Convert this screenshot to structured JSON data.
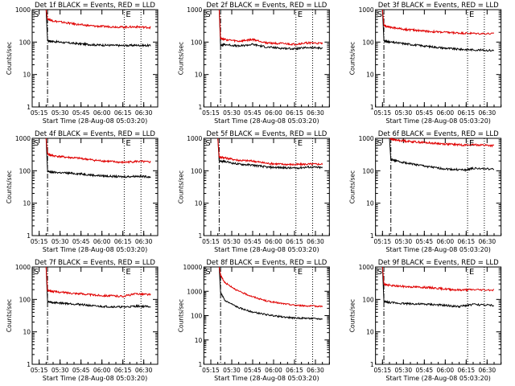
{
  "page": {
    "rows": 3,
    "cols": 3
  },
  "common": {
    "ylabel": "Counts/sec",
    "xlabel": "Start Time (28-Aug-08 05:03:20)",
    "start_marker": "S",
    "end_marker": "E",
    "x_ticks": [
      "05:15",
      "05:30",
      "05:45",
      "06:00",
      "06:15",
      "06:30"
    ],
    "y_ticks": [
      "1",
      "10",
      "100",
      "1000"
    ],
    "colors": {
      "events": "#000000",
      "lld": "#e00000"
    }
  },
  "chart_data": [
    {
      "type": "line",
      "title": "Det 1f BLACK = Events, RED = LLD",
      "ylim": [
        1,
        1000
      ],
      "start_line": "05:21",
      "end_lines": [
        "06:16",
        "06:28"
      ],
      "series": [
        {
          "name": "Events",
          "x": [
            "05:21",
            "05:25",
            "05:35",
            "05:45",
            "05:55",
            "06:05",
            "06:15",
            "06:25",
            "06:35"
          ],
          "y": [
            110,
            105,
            95,
            88,
            82,
            80,
            78,
            80,
            78
          ]
        },
        {
          "name": "LLD",
          "x": [
            "05:21",
            "05:25",
            "05:35",
            "05:45",
            "05:55",
            "06:05",
            "06:15",
            "06:25",
            "06:35"
          ],
          "y": [
            520,
            450,
            390,
            340,
            310,
            300,
            290,
            295,
            280
          ]
        }
      ]
    },
    {
      "type": "line",
      "title": "Det 2f BLACK = Events, RED = LLD",
      "ylim": [
        1,
        1000
      ],
      "start_line": "05:22",
      "end_lines": [
        "06:16",
        "06:28"
      ],
      "series": [
        {
          "name": "Events",
          "x": [
            "05:22",
            "05:25",
            "05:35",
            "05:45",
            "05:55",
            "06:05",
            "06:15",
            "06:25",
            "06:35"
          ],
          "y": [
            80,
            85,
            75,
            85,
            70,
            65,
            62,
            68,
            65
          ]
        },
        {
          "name": "LLD",
          "x": [
            "05:22",
            "05:25",
            "05:35",
            "05:45",
            "05:55",
            "06:05",
            "06:15",
            "06:25",
            "06:35"
          ],
          "y": [
            130,
            120,
            105,
            120,
            95,
            90,
            85,
            95,
            90
          ]
        }
      ]
    },
    {
      "type": "line",
      "title": "Det 3f BLACK = Events, RED = LLD",
      "ylim": [
        1,
        1000
      ],
      "start_line": "05:16",
      "end_lines": [
        "06:16",
        "06:28"
      ],
      "series": [
        {
          "name": "Events",
          "x": [
            "05:16",
            "05:20",
            "05:30",
            "05:40",
            "05:50",
            "06:00",
            "06:10",
            "06:20",
            "06:35"
          ],
          "y": [
            110,
            100,
            90,
            80,
            72,
            65,
            60,
            58,
            55
          ]
        },
        {
          "name": "LLD",
          "x": [
            "05:16",
            "05:20",
            "05:30",
            "05:40",
            "05:50",
            "06:00",
            "06:10",
            "06:20",
            "06:35"
          ],
          "y": [
            330,
            290,
            250,
            230,
            210,
            200,
            190,
            185,
            180
          ]
        }
      ]
    },
    {
      "type": "line",
      "title": "Det 4f BLACK = Events, RED = LLD",
      "ylim": [
        1,
        1000
      ],
      "start_line": "05:21",
      "end_lines": [
        "06:16",
        "06:28"
      ],
      "series": [
        {
          "name": "Events",
          "x": [
            "05:21",
            "05:25",
            "05:35",
            "05:45",
            "05:55",
            "06:05",
            "06:15",
            "06:25",
            "06:35"
          ],
          "y": [
            95,
            90,
            85,
            80,
            72,
            68,
            65,
            68,
            65
          ]
        },
        {
          "name": "LLD",
          "x": [
            "05:21",
            "05:25",
            "05:35",
            "05:45",
            "05:55",
            "06:05",
            "06:15",
            "06:25",
            "06:35"
          ],
          "y": [
            330,
            290,
            260,
            240,
            210,
            195,
            180,
            195,
            185
          ]
        }
      ]
    },
    {
      "type": "line",
      "title": "Det 5f BLACK = Events, RED = LLD",
      "ylim": [
        1,
        1000
      ],
      "start_line": "05:21",
      "end_lines": [
        "06:16",
        "06:28"
      ],
      "series": [
        {
          "name": "Events",
          "x": [
            "05:21",
            "05:25",
            "05:35",
            "05:45",
            "05:55",
            "06:05",
            "06:15",
            "06:25",
            "06:35"
          ],
          "y": [
            200,
            190,
            160,
            150,
            130,
            125,
            120,
            130,
            125
          ]
        },
        {
          "name": "LLD",
          "x": [
            "05:21",
            "05:25",
            "05:35",
            "05:45",
            "05:55",
            "06:05",
            "06:15",
            "06:25",
            "06:35"
          ],
          "y": [
            270,
            250,
            210,
            200,
            170,
            160,
            155,
            160,
            160
          ]
        }
      ]
    },
    {
      "type": "line",
      "title": "Det 6f BLACK = Events, RED = LLD",
      "ylim": [
        1,
        1000
      ],
      "start_line": "05:21",
      "end_lines": [
        "06:16",
        "06:28"
      ],
      "series": [
        {
          "name": "Events",
          "x": [
            "05:21",
            "05:25",
            "05:35",
            "05:45",
            "05:55",
            "06:05",
            "06:15",
            "06:20",
            "06:35"
          ],
          "y": [
            220,
            200,
            165,
            140,
            120,
            110,
            105,
            120,
            110
          ]
        },
        {
          "name": "LLD",
          "x": [
            "05:21",
            "05:25",
            "05:35",
            "05:45",
            "05:55",
            "06:05",
            "06:15",
            "06:25",
            "06:35"
          ],
          "y": [
            950,
            880,
            800,
            740,
            690,
            650,
            620,
            630,
            590
          ]
        }
      ]
    },
    {
      "type": "line",
      "title": "Det 7f BLACK = Events, RED = LLD",
      "ylim": [
        1,
        1000
      ],
      "start_line": "05:21",
      "end_lines": [
        "06:16",
        "06:28"
      ],
      "series": [
        {
          "name": "Events",
          "x": [
            "05:21",
            "05:25",
            "05:35",
            "05:45",
            "05:55",
            "06:05",
            "06:15",
            "06:25",
            "06:35"
          ],
          "y": [
            85,
            80,
            75,
            70,
            62,
            60,
            58,
            62,
            60
          ]
        },
        {
          "name": "LLD",
          "x": [
            "05:21",
            "05:25",
            "05:35",
            "05:45",
            "05:55",
            "06:05",
            "06:15",
            "06:25",
            "06:35"
          ],
          "y": [
            190,
            175,
            160,
            150,
            135,
            130,
            125,
            150,
            140
          ]
        }
      ]
    },
    {
      "type": "line",
      "title": "Det 8f BLACK = Events, RED = LLD",
      "ylim": [
        1,
        10000
      ],
      "start_line": "05:22",
      "end_lines": [
        "06:16",
        "06:28"
      ],
      "series": [
        {
          "name": "Events",
          "x": [
            "05:22",
            "05:25",
            "05:35",
            "05:45",
            "05:55",
            "06:05",
            "06:15",
            "06:25",
            "06:35"
          ],
          "y": [
            900,
            420,
            210,
            140,
            110,
            90,
            80,
            78,
            72
          ]
        },
        {
          "name": "LLD",
          "x": [
            "05:22",
            "05:25",
            "05:35",
            "05:45",
            "05:55",
            "06:05",
            "06:15",
            "06:25",
            "06:35"
          ],
          "y": [
            4500,
            2300,
            1000,
            600,
            400,
            320,
            270,
            250,
            240
          ]
        }
      ]
    },
    {
      "type": "line",
      "title": "Det 9f BLACK = Events, RED = LLD",
      "ylim": [
        1,
        1000
      ],
      "start_line": "05:16",
      "end_lines": [
        "06:16",
        "06:28"
      ],
      "series": [
        {
          "name": "Events",
          "x": [
            "05:16",
            "05:20",
            "05:30",
            "05:40",
            "05:50",
            "06:00",
            "06:10",
            "06:20",
            "06:35"
          ],
          "y": [
            85,
            80,
            75,
            72,
            70,
            65,
            60,
            70,
            65
          ]
        },
        {
          "name": "LLD",
          "x": [
            "05:16",
            "05:20",
            "05:30",
            "05:40",
            "05:50",
            "06:00",
            "06:10",
            "06:20",
            "06:35"
          ],
          "y": [
            300,
            270,
            250,
            240,
            230,
            210,
            195,
            200,
            195
          ]
        }
      ]
    }
  ]
}
